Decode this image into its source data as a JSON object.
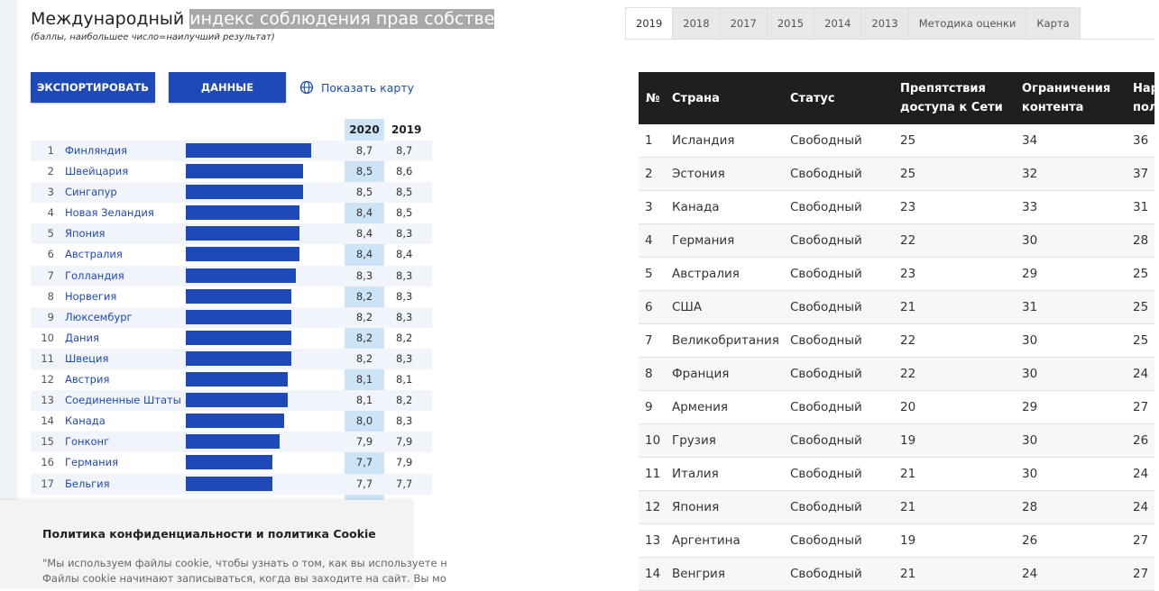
{
  "left": {
    "title_plain": "Международный ",
    "title_highlight": "индекс соблюдения прав собстве",
    "subtitle": "(баллы, наибольшее число=наилучший результат)",
    "export_label": "ЭКСПОРТИРОВАТЬ",
    "data_label": "ДАННЫЕ",
    "map_label": "Показать карту",
    "year_2020": "2020",
    "year_2019": "2019",
    "rows": [
      {
        "rank": "1",
        "country": "Финляндия",
        "v2020": "8,7",
        "v2019": "8,7"
      },
      {
        "rank": "2",
        "country": "Швейцария",
        "v2020": "8,5",
        "v2019": "8,6"
      },
      {
        "rank": "3",
        "country": "Сингапур",
        "v2020": "8,5",
        "v2019": "8,5"
      },
      {
        "rank": "4",
        "country": "Новая Зеландия",
        "v2020": "8,4",
        "v2019": "8,5"
      },
      {
        "rank": "5",
        "country": "Япония",
        "v2020": "8,4",
        "v2019": "8,3"
      },
      {
        "rank": "6",
        "country": "Австралия",
        "v2020": "8,4",
        "v2019": "8,4"
      },
      {
        "rank": "7",
        "country": "Голландия",
        "v2020": "8,3",
        "v2019": "8,3"
      },
      {
        "rank": "8",
        "country": "Норвегия",
        "v2020": "8,2",
        "v2019": "8,3"
      },
      {
        "rank": "9",
        "country": "Люксембург",
        "v2020": "8,2",
        "v2019": "8,3"
      },
      {
        "rank": "10",
        "country": "Дания",
        "v2020": "8,2",
        "v2019": "8,2"
      },
      {
        "rank": "11",
        "country": "Швеция",
        "v2020": "8,2",
        "v2019": "8,3"
      },
      {
        "rank": "12",
        "country": "Австрия",
        "v2020": "8,1",
        "v2019": "8,1"
      },
      {
        "rank": "13",
        "country": "Соединенные Штаты ...",
        "v2020": "8,1",
        "v2019": "8,2"
      },
      {
        "rank": "14",
        "country": "Канада",
        "v2020": "8,0",
        "v2019": "8,3"
      },
      {
        "rank": "15",
        "country": "Гонконг",
        "v2020": "7,9",
        "v2019": "7,9"
      },
      {
        "rank": "16",
        "country": "Германия",
        "v2020": "7,7",
        "v2019": "7,9"
      },
      {
        "rank": "17",
        "country": "Бельгия",
        "v2020": "7,7",
        "v2019": "7,7"
      }
    ],
    "cookie_title": "Политика конфиденциальности и политика Cookie",
    "cookie_line1": "\"Мы используем файлы cookie, чтобы узнать о том, как вы используете н",
    "cookie_line2": "Файлы cookie начинают записываться, когда вы заходите на сайт. Вы мо"
  },
  "right": {
    "tabs": [
      "2019",
      "2018",
      "2017",
      "2015",
      "2014",
      "2013",
      "Методика оценки",
      "Карта"
    ],
    "headers": {
      "num": "№",
      "country": "Страна",
      "status": "Статус",
      "access_1": "Препятствия",
      "access_2": "доступа к Сети",
      "content_1": "Ограничения",
      "content_2": "контента",
      "rights_1": "Нар",
      "rights_2": "пол"
    },
    "rows": [
      {
        "n": "1",
        "country": "Исландия",
        "status": "Свободный",
        "a": "25",
        "c": "34",
        "r": "36"
      },
      {
        "n": "2",
        "country": "Эстония",
        "status": "Свободный",
        "a": "25",
        "c": "32",
        "r": "37"
      },
      {
        "n": "3",
        "country": "Канада",
        "status": "Свободный",
        "a": "23",
        "c": "33",
        "r": "31"
      },
      {
        "n": "4",
        "country": "Германия",
        "status": "Свободный",
        "a": "22",
        "c": "30",
        "r": "28"
      },
      {
        "n": "5",
        "country": "Австралия",
        "status": "Свободный",
        "a": "23",
        "c": "29",
        "r": "25"
      },
      {
        "n": "6",
        "country": "США",
        "status": "Свободный",
        "a": "21",
        "c": "31",
        "r": "25"
      },
      {
        "n": "7",
        "country": "Великобритания",
        "status": "Свободный",
        "a": "22",
        "c": "30",
        "r": "25"
      },
      {
        "n": "8",
        "country": "Франция",
        "status": "Свободный",
        "a": "22",
        "c": "30",
        "r": "24"
      },
      {
        "n": "9",
        "country": "Армения",
        "status": "Свободный",
        "a": "20",
        "c": "29",
        "r": "27"
      },
      {
        "n": "10",
        "country": "Грузия",
        "status": "Свободный",
        "a": "19",
        "c": "30",
        "r": "26"
      },
      {
        "n": "11",
        "country": "Италия",
        "status": "Свободный",
        "a": "21",
        "c": "30",
        "r": "24"
      },
      {
        "n": "12",
        "country": "Япония",
        "status": "Свободный",
        "a": "21",
        "c": "28",
        "r": "24"
      },
      {
        "n": "13",
        "country": "Аргентина",
        "status": "Свободный",
        "a": "19",
        "c": "26",
        "r": "27"
      },
      {
        "n": "14",
        "country": "Венгрия",
        "status": "Свободный",
        "a": "21",
        "c": "24",
        "r": "27"
      }
    ]
  },
  "colors": {
    "accent": "#1e49b8",
    "highlight_col": "#cde4f7",
    "table_head": "#1f1f1f"
  }
}
